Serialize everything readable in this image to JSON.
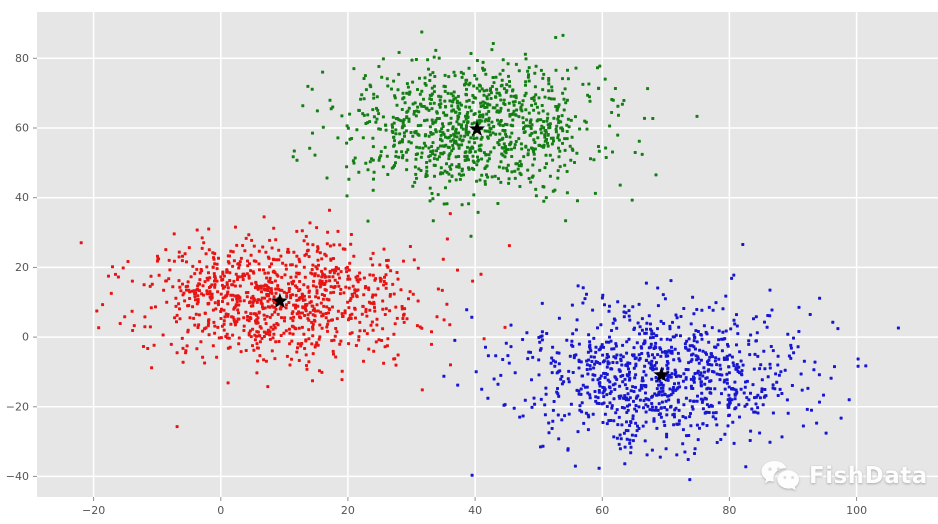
{
  "watermark": {
    "text": "FishData",
    "icon": "wechat-logo"
  },
  "colors": {
    "page_bg": "#ffffff",
    "plot_bg": "#e6e6e6",
    "grid": "#ffffff",
    "tick_text": "#555555",
    "tick_mark": "#8f8f8f",
    "centroid": "#000000",
    "watermark": "#fdfdfd"
  },
  "chart_data": {
    "type": "scatter",
    "title": "",
    "xlabel": "",
    "ylabel": "",
    "xlim": [
      -28.9,
      112.8
    ],
    "ylim": [
      -45.9,
      93.3
    ],
    "xticks": [
      -20,
      0,
      20,
      40,
      60,
      80,
      100
    ],
    "yticks": [
      -40,
      -20,
      0,
      20,
      40,
      60,
      80
    ],
    "grid": true,
    "legend": false,
    "style": "ggplot-gray-background",
    "marker": "square-3px",
    "series": [
      {
        "name": "cluster-red",
        "color": "#e81414",
        "n": 1000,
        "center": [
          9.5,
          10.4
        ],
        "std": [
          11.0,
          8.6
        ],
        "seed": 1337
      },
      {
        "name": "cluster-green",
        "color": "#157f15",
        "n": 1000,
        "center": [
          40.2,
          60.0
        ],
        "std": [
          10.6,
          9.2
        ],
        "seed": 4242
      },
      {
        "name": "cluster-blue",
        "color": "#1717d2",
        "n": 1000,
        "center": [
          69.4,
          -10.6
        ],
        "std": [
          11.5,
          10.0
        ],
        "seed": 9001
      }
    ],
    "centroids": {
      "marker": "star",
      "color": "#000000",
      "points": [
        [
          9.3,
          10.3
        ],
        [
          40.3,
          59.7
        ],
        [
          69.3,
          -10.9
        ]
      ]
    }
  }
}
